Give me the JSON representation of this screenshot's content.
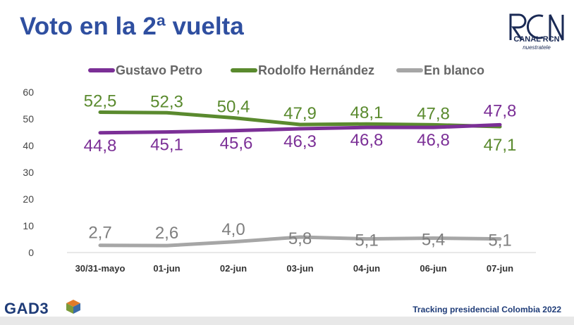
{
  "header": {
    "title": "Voto en la 2ª vuelta",
    "logo_main": "CANAL RCN",
    "logo_sub": "nuestratele"
  },
  "footer": {
    "brand": "GAD3",
    "caption": "Tracking presidencial Colombia 2022"
  },
  "chart_data": {
    "type": "line",
    "title": "Voto en la 2ª vuelta",
    "categories": [
      "30/31-mayo",
      "01-jun",
      "02-jun",
      "03-jun",
      "04-jun",
      "06-jun",
      "07-jun"
    ],
    "ylim": [
      0,
      60
    ],
    "yticks": [
      0,
      10,
      20,
      30,
      40,
      50,
      60
    ],
    "grid": false,
    "legend": "top",
    "series": [
      {
        "name": "Gustavo Petro",
        "color": "#7b2f96",
        "values": [
          44.8,
          45.1,
          45.6,
          46.3,
          46.8,
          46.8,
          47.8
        ],
        "labels": [
          "44,8",
          "45,1",
          "45,6",
          "46,3",
          "46,8",
          "46,8",
          "47,8"
        ]
      },
      {
        "name": "Rodolfo Hernández",
        "color": "#5a8a2e",
        "values": [
          52.5,
          52.3,
          50.4,
          47.9,
          48.1,
          47.8,
          47.1
        ],
        "labels": [
          "52,5",
          "52,3",
          "50,4",
          "47,9",
          "48,1",
          "47,8",
          "47,1"
        ]
      },
      {
        "name": "En blanco",
        "color": "#a6a6a6",
        "values": [
          2.7,
          2.6,
          4.0,
          5.8,
          5.1,
          5.4,
          5.1
        ],
        "labels": [
          "2,7",
          "2,6",
          "4,0",
          "5,8",
          "5,1",
          "5,4",
          "5,1"
        ]
      }
    ]
  }
}
